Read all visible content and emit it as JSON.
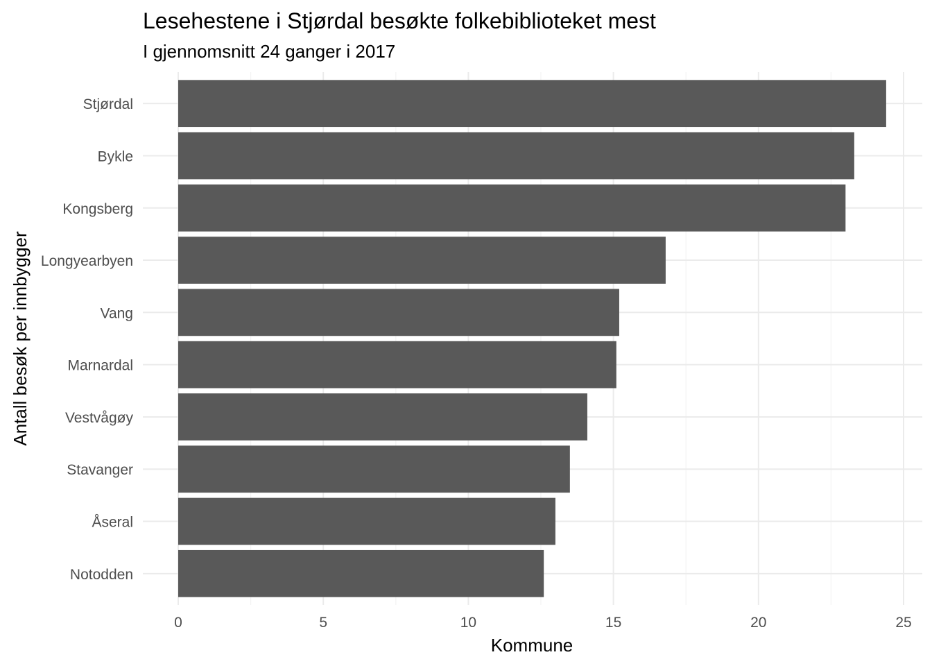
{
  "chart_data": {
    "type": "bar",
    "orientation": "horizontal",
    "title": "Lesehestene i Stjørdal besøkte folkebiblioteket mest",
    "subtitle": "I gjennomsnitt 24 ganger i 2017",
    "xlabel": "Kommune",
    "ylabel": "Antall besøk per innbygger",
    "categories": [
      "Stjørdal",
      "Bykle",
      "Kongsberg",
      "Longyearbyen",
      "Vang",
      "Marnardal",
      "Vestvågøy",
      "Stavanger",
      "Åseral",
      "Notodden"
    ],
    "values": [
      24.4,
      23.3,
      23.0,
      16.8,
      15.2,
      15.1,
      14.1,
      13.5,
      13.0,
      12.6
    ],
    "xticks": [
      0,
      5,
      10,
      15,
      20,
      25
    ],
    "xlim": [
      -0.6,
      25.7
    ],
    "grid": true,
    "legend": "none",
    "bar_color": "#595959"
  }
}
